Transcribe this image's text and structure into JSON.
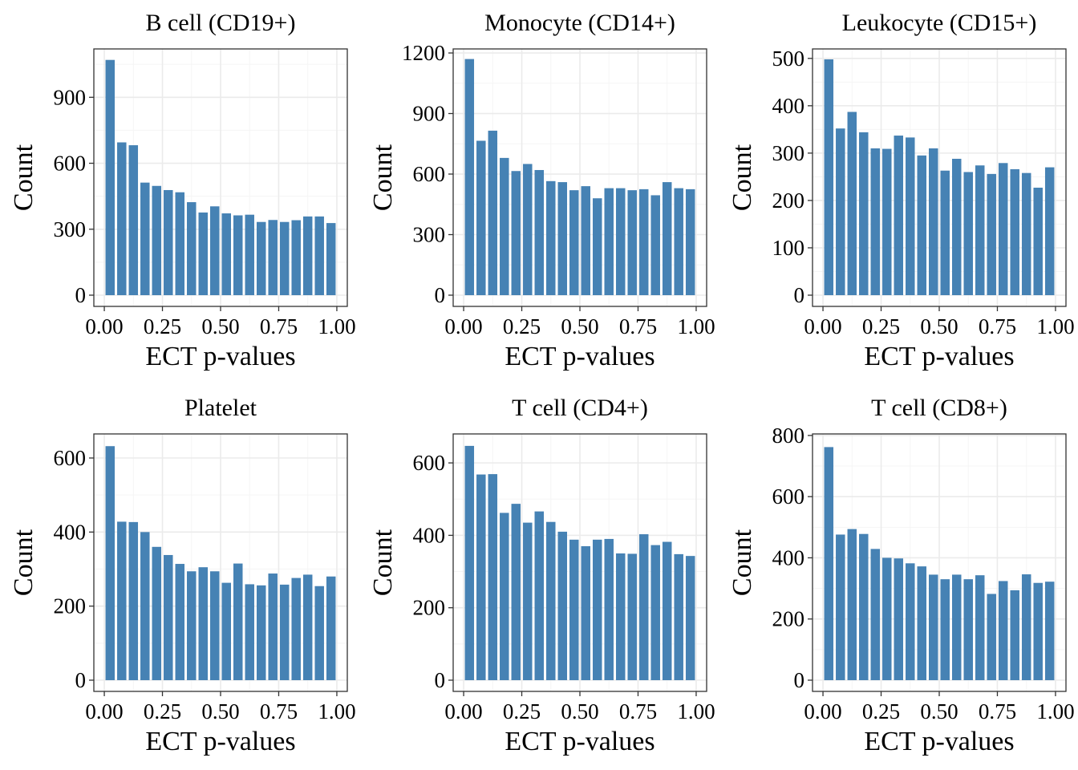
{
  "colors": {
    "bar": "#4682B4",
    "panel_border": "#333333",
    "grid_major": "#EBEBEB",
    "grid_minor": "#F5F5F5"
  },
  "chart_data": [
    {
      "type": "bar",
      "title": "B cell (CD19+)",
      "xlabel": "ECT p-values",
      "ylabel": "Count",
      "xlim": [
        0,
        1
      ],
      "ylim": [
        0,
        1120
      ],
      "xticks": [
        "0.00",
        "0.25",
        "0.50",
        "0.75",
        "1.00"
      ],
      "yticks": [
        0,
        300,
        600,
        900
      ],
      "grid": true,
      "bin_width": 0.05,
      "x": [
        0.025,
        0.075,
        0.125,
        0.175,
        0.225,
        0.275,
        0.325,
        0.375,
        0.425,
        0.475,
        0.525,
        0.575,
        0.625,
        0.675,
        0.725,
        0.775,
        0.825,
        0.875,
        0.925,
        0.975
      ],
      "values": [
        1070,
        695,
        682,
        512,
        497,
        478,
        468,
        423,
        376,
        404,
        372,
        363,
        366,
        333,
        342,
        333,
        341,
        358,
        358,
        328
      ]
    },
    {
      "type": "bar",
      "title": "Monocyte (CD14+)",
      "xlabel": "ECT p-values",
      "ylabel": "Count",
      "xlim": [
        0,
        1
      ],
      "ylim": [
        0,
        1220
      ],
      "xticks": [
        "0.00",
        "0.25",
        "0.50",
        "0.75",
        "1.00"
      ],
      "yticks": [
        0,
        300,
        600,
        900,
        1200
      ],
      "grid": true,
      "bin_width": 0.05,
      "x": [
        0.025,
        0.075,
        0.125,
        0.175,
        0.225,
        0.275,
        0.325,
        0.375,
        0.425,
        0.475,
        0.525,
        0.575,
        0.625,
        0.675,
        0.725,
        0.775,
        0.825,
        0.875,
        0.925,
        0.975
      ],
      "values": [
        1170,
        765,
        815,
        680,
        615,
        650,
        620,
        565,
        560,
        520,
        540,
        480,
        530,
        530,
        520,
        525,
        495,
        560,
        530,
        525
      ]
    },
    {
      "type": "bar",
      "title": "Leukocyte (CD15+)",
      "xlabel": "ECT p-values",
      "ylabel": "Count",
      "xlim": [
        0,
        1
      ],
      "ylim": [
        0,
        520
      ],
      "xticks": [
        "0.00",
        "0.25",
        "0.50",
        "0.75",
        "1.00"
      ],
      "yticks": [
        0,
        100,
        200,
        300,
        400,
        500
      ],
      "grid": true,
      "bin_width": 0.05,
      "x": [
        0.025,
        0.075,
        0.125,
        0.175,
        0.225,
        0.275,
        0.325,
        0.375,
        0.425,
        0.475,
        0.525,
        0.575,
        0.625,
        0.675,
        0.725,
        0.775,
        0.825,
        0.875,
        0.925,
        0.975
      ],
      "values": [
        498,
        352,
        387,
        344,
        310,
        309,
        337,
        333,
        295,
        310,
        263,
        288,
        260,
        274,
        256,
        279,
        266,
        258,
        227,
        270
      ]
    },
    {
      "type": "bar",
      "title": "Platelet",
      "xlabel": "ECT p-values",
      "ylabel": "Count",
      "xlim": [
        0,
        1
      ],
      "ylim": [
        0,
        665
      ],
      "xticks": [
        "0.00",
        "0.25",
        "0.50",
        "0.75",
        "1.00"
      ],
      "yticks": [
        0,
        200,
        400,
        600
      ],
      "grid": true,
      "bin_width": 0.05,
      "x": [
        0.025,
        0.075,
        0.125,
        0.175,
        0.225,
        0.275,
        0.325,
        0.375,
        0.425,
        0.475,
        0.525,
        0.575,
        0.625,
        0.675,
        0.725,
        0.775,
        0.825,
        0.875,
        0.925,
        0.975
      ],
      "values": [
        632,
        428,
        427,
        400,
        360,
        338,
        314,
        294,
        305,
        294,
        263,
        315,
        259,
        256,
        288,
        258,
        276,
        285,
        254,
        280
      ]
    },
    {
      "type": "bar",
      "title": "T cell (CD4+)",
      "xlabel": "ECT p-values",
      "ylabel": "Count",
      "xlim": [
        0,
        1
      ],
      "ylim": [
        0,
        680
      ],
      "xticks": [
        "0.00",
        "0.25",
        "0.50",
        "0.75",
        "1.00"
      ],
      "yticks": [
        0,
        200,
        400,
        600
      ],
      "grid": true,
      "bin_width": 0.05,
      "x": [
        0.025,
        0.075,
        0.125,
        0.175,
        0.225,
        0.275,
        0.325,
        0.375,
        0.425,
        0.475,
        0.525,
        0.575,
        0.625,
        0.675,
        0.725,
        0.775,
        0.825,
        0.875,
        0.925,
        0.975
      ],
      "values": [
        647,
        568,
        569,
        462,
        487,
        435,
        466,
        437,
        410,
        388,
        370,
        388,
        390,
        350,
        349,
        403,
        373,
        382,
        348,
        343
      ]
    },
    {
      "type": "bar",
      "title": "T cell (CD8+)",
      "xlabel": "ECT p-values",
      "ylabel": "Count",
      "xlim": [
        0,
        1
      ],
      "ylim": [
        0,
        805
      ],
      "xticks": [
        "0.00",
        "0.25",
        "0.50",
        "0.75",
        "1.00"
      ],
      "yticks": [
        0,
        200,
        400,
        600,
        800
      ],
      "grid": true,
      "bin_width": 0.05,
      "x": [
        0.025,
        0.075,
        0.125,
        0.175,
        0.225,
        0.275,
        0.325,
        0.375,
        0.425,
        0.475,
        0.525,
        0.575,
        0.625,
        0.675,
        0.725,
        0.775,
        0.825,
        0.875,
        0.925,
        0.975
      ],
      "values": [
        762,
        476,
        494,
        478,
        429,
        400,
        398,
        382,
        372,
        345,
        330,
        345,
        330,
        343,
        282,
        324,
        294,
        346,
        318,
        322
      ]
    }
  ]
}
